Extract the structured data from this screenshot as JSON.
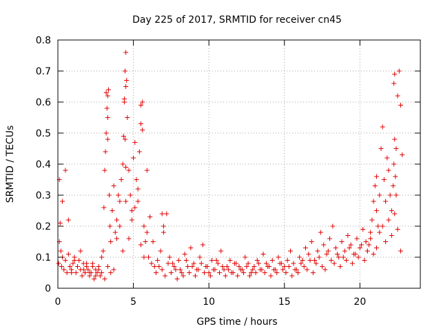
{
  "chart_data": {
    "type": "scatter",
    "title": "Day 225 of 2017, SRMTID for receiver cn45",
    "xlabel": "GPS time / hours",
    "ylabel": "SRMTID / TECUs",
    "xlim": [
      0,
      24
    ],
    "ylim": [
      0,
      0.8
    ],
    "xticks": [
      0,
      5,
      10,
      15,
      20
    ],
    "xtick_labels": [
      "0",
      "5",
      "10",
      "15",
      "20"
    ],
    "yticks": [
      0,
      0.1,
      0.2,
      0.3,
      0.4,
      0.5,
      0.6,
      0.7,
      0.8
    ],
    "ytick_labels": [
      "0",
      "0.1",
      "0.2",
      "0.3",
      "0.4",
      "0.5",
      "0.6",
      "0.7",
      "0.8"
    ],
    "grid": true,
    "marker": "+",
    "color": "#e00000",
    "series": [
      {
        "name": "SRMTID",
        "x": [
          0.05,
          0.1,
          0.15,
          0.2,
          0.25,
          0.3,
          0.4,
          0.5,
          0.6,
          0.7,
          0.8,
          0.9,
          1.0,
          1.1,
          1.2,
          1.3,
          1.4,
          1.5,
          1.6,
          1.7,
          1.8,
          1.9,
          2.0,
          2.1,
          2.2,
          2.3,
          2.4,
          2.5,
          2.6,
          2.7,
          2.8,
          2.9,
          3.0,
          3.05,
          3.1,
          3.15,
          3.2,
          3.25,
          3.3,
          3.35,
          3.4,
          3.45,
          3.5,
          3.6,
          3.7,
          3.8,
          3.9,
          4.0,
          4.1,
          4.2,
          4.3,
          4.35,
          4.4,
          4.45,
          4.5,
          4.55,
          4.6,
          4.7,
          4.8,
          4.9,
          5.0,
          5.1,
          5.2,
          5.3,
          5.4,
          5.5,
          5.6,
          5.7,
          5.8,
          5.9,
          6.0,
          6.2,
          6.4,
          6.6,
          6.8,
          7.0,
          7.2,
          7.4,
          7.6,
          7.8,
          8.0,
          8.2,
          8.4,
          8.6,
          8.8,
          9.0,
          9.2,
          9.4,
          9.6,
          9.8,
          10.0,
          10.2,
          10.4,
          10.6,
          10.8,
          11.0,
          11.2,
          11.4,
          11.6,
          11.8,
          12.0,
          12.2,
          12.4,
          12.6,
          12.8,
          13.0,
          13.2,
          13.4,
          13.6,
          13.8,
          14.0,
          14.2,
          14.4,
          14.6,
          14.8,
          15.0,
          15.2,
          15.4,
          15.6,
          15.8,
          16.0,
          16.2,
          16.4,
          16.6,
          16.8,
          17.0,
          17.2,
          17.4,
          17.6,
          17.8,
          18.0,
          18.2,
          18.4,
          18.6,
          18.8,
          19.0,
          19.2,
          19.4,
          19.6,
          19.8,
          20.0,
          20.2,
          20.4,
          20.5,
          20.6,
          20.7,
          20.8,
          20.9,
          21.0,
          21.1,
          21.2,
          21.3,
          21.4,
          21.5,
          21.6,
          21.7,
          21.8,
          21.9,
          22.0,
          22.1,
          22.2,
          22.25,
          22.3,
          22.35,
          22.4,
          22.5,
          22.6,
          22.7,
          22.8,
          0.1,
          0.3,
          0.5,
          0.7,
          0.9,
          1.1,
          1.3,
          1.5,
          1.7,
          1.9,
          2.1,
          2.3,
          2.5,
          2.7,
          2.9,
          3.1,
          3.3,
          3.5,
          3.7,
          3.9,
          4.1,
          4.3,
          4.5,
          4.7,
          4.9,
          5.1,
          5.3,
          5.5,
          5.7,
          5.9,
          6.1,
          6.3,
          6.5,
          6.7,
          6.9,
          7.1,
          7.3,
          7.5,
          7.7,
          7.9,
          8.1,
          8.3,
          8.5,
          8.7,
          8.9,
          9.1,
          9.3,
          9.5,
          9.7,
          9.9,
          10.1,
          10.3,
          10.5,
          10.7,
          10.9,
          11.1,
          11.3,
          11.5,
          11.7,
          11.9,
          12.1,
          12.3,
          12.5,
          12.7,
          12.9,
          13.1,
          13.3,
          13.5,
          13.7,
          13.9,
          14.1,
          14.3,
          14.5,
          14.7,
          14.9,
          15.1,
          15.3,
          15.5,
          15.7,
          15.9,
          16.1,
          16.3,
          16.5,
          16.7,
          16.9,
          17.1,
          17.3,
          17.5,
          17.7,
          17.9,
          18.1,
          18.3,
          18.5,
          18.7,
          18.9,
          19.1,
          19.3,
          19.5,
          19.7,
          19.9,
          20.1,
          20.3,
          20.5,
          20.7,
          20.9,
          21.1,
          21.3,
          21.5,
          21.7,
          21.9,
          22.1,
          22.3,
          22.5,
          22.7,
          3.2,
          3.3,
          4.45,
          4.5,
          5.5,
          22.25,
          22.3,
          3.3,
          4.4,
          21.1,
          22.4,
          6.9,
          7.0,
          4.5,
          5.6
        ],
        "y": [
          0.08,
          0.15,
          0.21,
          0.12,
          0.07,
          0.1,
          0.06,
          0.09,
          0.05,
          0.11,
          0.07,
          0.06,
          0.08,
          0.1,
          0.05,
          0.07,
          0.09,
          0.06,
          0.04,
          0.08,
          0.05,
          0.07,
          0.06,
          0.04,
          0.05,
          0.08,
          0.03,
          0.06,
          0.05,
          0.07,
          0.04,
          0.1,
          0.12,
          0.26,
          0.38,
          0.44,
          0.5,
          0.58,
          0.62,
          0.64,
          0.3,
          0.2,
          0.15,
          0.25,
          0.33,
          0.18,
          0.22,
          0.3,
          0.28,
          0.35,
          0.4,
          0.49,
          0.6,
          0.7,
          0.76,
          0.67,
          0.55,
          0.38,
          0.3,
          0.25,
          0.42,
          0.47,
          0.35,
          0.28,
          0.44,
          0.53,
          0.6,
          0.2,
          0.15,
          0.38,
          0.1,
          0.08,
          0.07,
          0.09,
          0.12,
          0.2,
          0.24,
          0.1,
          0.08,
          0.06,
          0.09,
          0.05,
          0.11,
          0.07,
          0.13,
          0.08,
          0.06,
          0.1,
          0.14,
          0.07,
          0.05,
          0.09,
          0.06,
          0.08,
          0.12,
          0.06,
          0.07,
          0.09,
          0.05,
          0.08,
          0.07,
          0.06,
          0.1,
          0.08,
          0.05,
          0.07,
          0.09,
          0.06,
          0.11,
          0.08,
          0.07,
          0.09,
          0.06,
          0.1,
          0.08,
          0.07,
          0.09,
          0.12,
          0.08,
          0.06,
          0.1,
          0.09,
          0.13,
          0.11,
          0.15,
          0.09,
          0.12,
          0.18,
          0.14,
          0.11,
          0.16,
          0.2,
          0.13,
          0.1,
          0.15,
          0.12,
          0.17,
          0.14,
          0.11,
          0.16,
          0.13,
          0.19,
          0.15,
          0.12,
          0.14,
          0.18,
          0.22,
          0.28,
          0.33,
          0.25,
          0.2,
          0.3,
          0.45,
          0.52,
          0.35,
          0.28,
          0.42,
          0.38,
          0.3,
          0.25,
          0.33,
          0.4,
          0.48,
          0.36,
          0.3,
          0.62,
          0.7,
          0.59,
          0.43,
          0.35,
          0.28,
          0.38,
          0.22,
          0.05,
          0.09,
          0.07,
          0.12,
          0.06,
          0.08,
          0.05,
          0.07,
          0.04,
          0.06,
          0.05,
          0.03,
          0.07,
          0.05,
          0.06,
          0.16,
          0.2,
          0.12,
          0.28,
          0.16,
          0.22,
          0.26,
          0.32,
          0.14,
          0.1,
          0.18,
          0.23,
          0.15,
          0.05,
          0.07,
          0.06,
          0.04,
          0.08,
          0.05,
          0.07,
          0.03,
          0.06,
          0.04,
          0.09,
          0.05,
          0.07,
          0.04,
          0.06,
          0.08,
          0.05,
          0.07,
          0.04,
          0.06,
          0.09,
          0.05,
          0.07,
          0.04,
          0.06,
          0.05,
          0.08,
          0.04,
          0.06,
          0.05,
          0.07,
          0.04,
          0.06,
          0.05,
          0.08,
          0.06,
          0.05,
          0.07,
          0.04,
          0.06,
          0.05,
          0.08,
          0.06,
          0.05,
          0.07,
          0.04,
          0.06,
          0.05,
          0.08,
          0.07,
          0.06,
          0.09,
          0.05,
          0.08,
          0.1,
          0.07,
          0.06,
          0.12,
          0.09,
          0.08,
          0.11,
          0.07,
          0.1,
          0.09,
          0.13,
          0.08,
          0.11,
          0.1,
          0.14,
          0.09,
          0.12,
          0.16,
          0.11,
          0.13,
          0.18,
          0.2,
          0.15,
          0.22,
          0.17,
          0.24,
          0.19,
          0.12,
          0.63,
          0.55,
          0.48,
          0.39,
          0.59,
          0.66,
          0.69,
          0.48,
          0.61,
          0.36,
          0.45,
          0.24,
          0.18,
          0.65,
          0.51
        ]
      }
    ]
  }
}
